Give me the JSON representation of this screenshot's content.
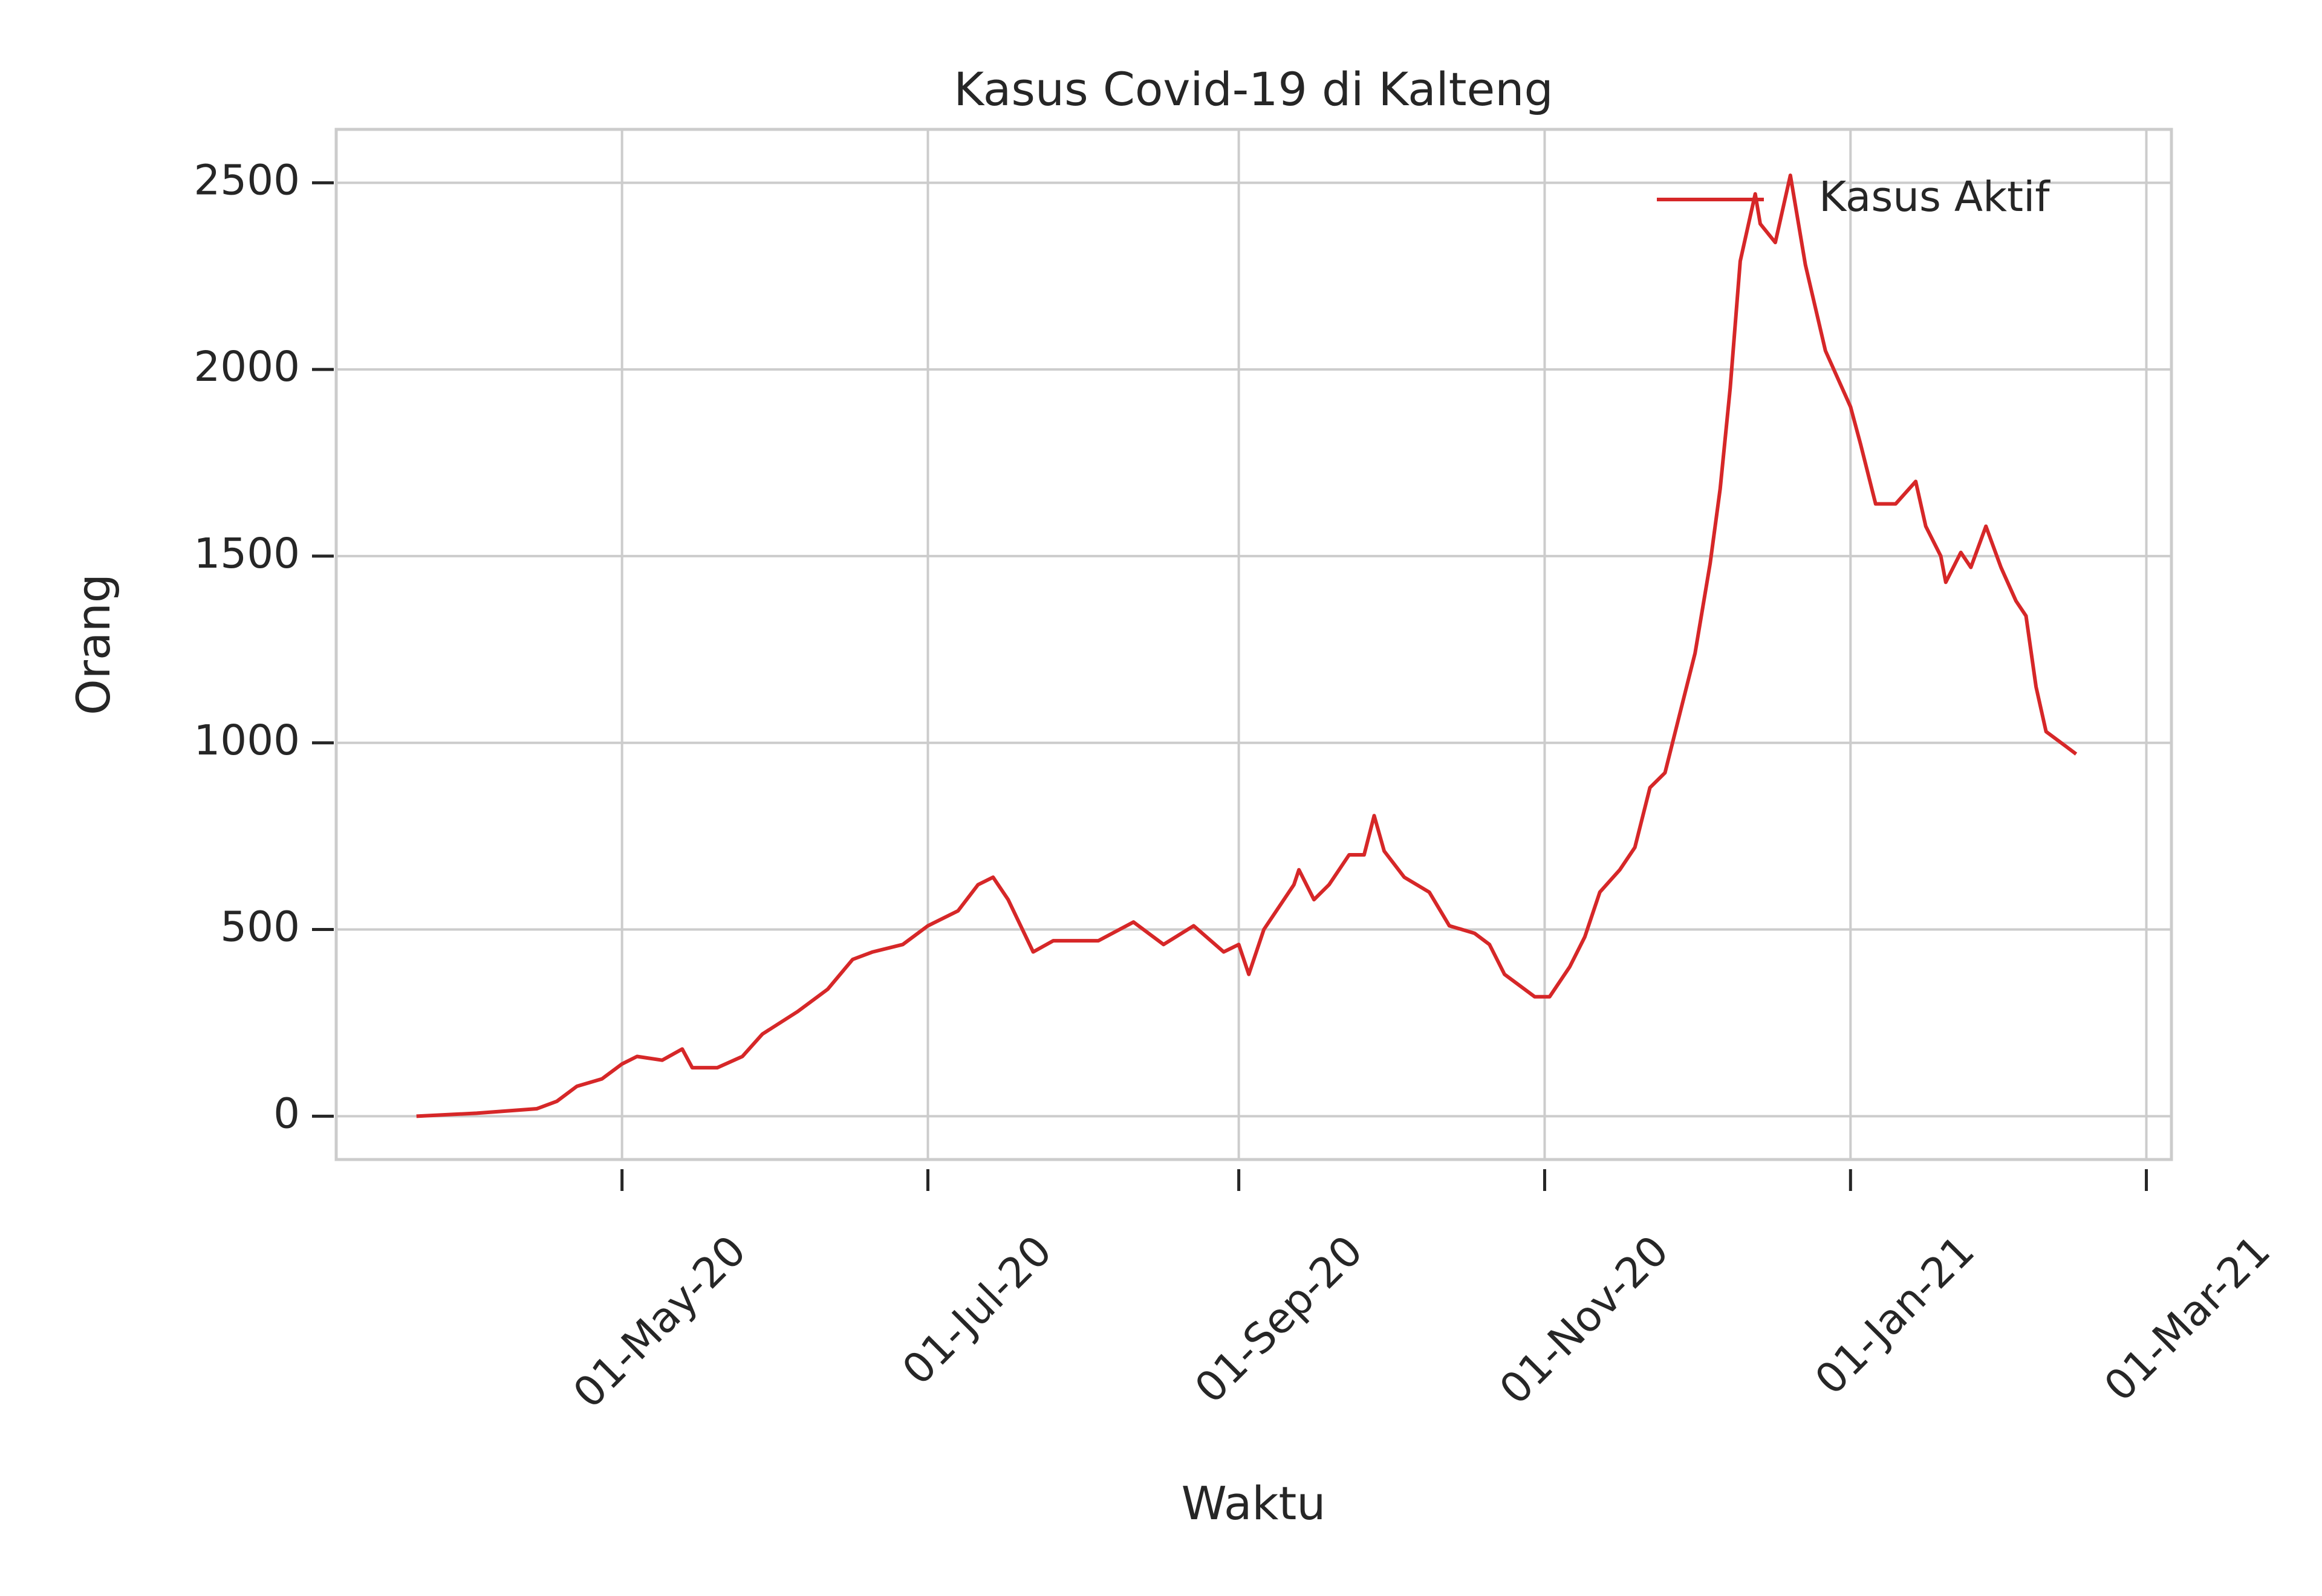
{
  "chart_data": {
    "type": "line",
    "title": "Kasus Covid-19 di Kalteng",
    "x_label": "Waktu",
    "y_label": "Orang",
    "x": [
      "2020-03-21",
      "2020-04-02",
      "2020-04-14",
      "2020-04-18",
      "2020-04-22",
      "2020-04-27",
      "2020-05-01",
      "2020-05-04",
      "2020-05-09",
      "2020-05-13",
      "2020-05-15",
      "2020-05-20",
      "2020-05-25",
      "2020-05-29",
      "2020-06-05",
      "2020-06-11",
      "2020-06-16",
      "2020-06-20",
      "2020-06-26",
      "2020-07-01",
      "2020-07-07",
      "2020-07-11",
      "2020-07-14",
      "2020-07-17",
      "2020-07-22",
      "2020-07-26",
      "2020-08-04",
      "2020-08-11",
      "2020-08-17",
      "2020-08-23",
      "2020-08-29",
      "2020-09-01",
      "2020-09-03",
      "2020-09-06",
      "2020-09-12",
      "2020-09-13",
      "2020-09-16",
      "2020-09-19",
      "2020-09-23",
      "2020-09-26",
      "2020-09-28",
      "2020-09-30",
      "2020-10-04",
      "2020-10-09",
      "2020-10-13",
      "2020-10-18",
      "2020-10-21",
      "2020-10-24",
      "2020-10-30",
      "2020-11-02",
      "2020-11-06",
      "2020-11-09",
      "2020-11-12",
      "2020-11-16",
      "2020-11-19",
      "2020-11-22",
      "2020-11-25",
      "2020-11-28",
      "2020-12-01",
      "2020-12-04",
      "2020-12-06",
      "2020-12-08",
      "2020-12-10",
      "2020-12-13",
      "2020-12-14",
      "2020-12-17",
      "2020-12-20",
      "2020-12-23",
      "2020-12-27",
      "2021-01-01",
      "2021-01-03",
      "2021-01-06",
      "2021-01-10",
      "2021-01-14",
      "2021-01-16",
      "2021-01-19",
      "2021-01-20",
      "2021-01-23",
      "2021-01-25",
      "2021-01-28",
      "2021-01-31",
      "2021-02-03",
      "2021-02-05",
      "2021-02-07",
      "2021-02-09",
      "2021-02-13",
      "2021-02-15"
    ],
    "series": [
      {
        "name": "Kasus Aktif",
        "color": "#d62728",
        "values": [
          0,
          8,
          20,
          40,
          80,
          100,
          140,
          160,
          150,
          180,
          130,
          130,
          160,
          220,
          280,
          340,
          420,
          440,
          460,
          510,
          550,
          620,
          640,
          580,
          440,
          470,
          470,
          520,
          460,
          510,
          440,
          460,
          380,
          500,
          620,
          660,
          580,
          620,
          700,
          700,
          805,
          710,
          640,
          600,
          510,
          490,
          460,
          380,
          320,
          320,
          400,
          480,
          600,
          660,
          720,
          880,
          920,
          1080,
          1240,
          1480,
          1680,
          1950,
          2290,
          2470,
          2390,
          2340,
          2520,
          2280,
          2050,
          1900,
          1800,
          1640,
          1640,
          1700,
          1580,
          1500,
          1430,
          1510,
          1470,
          1580,
          1470,
          1380,
          1340,
          1150,
          1030,
          990,
          970
        ]
      }
    ],
    "xlim": [
      "2020-03-05",
      "2021-03-06"
    ],
    "xticks": [
      {
        "value": "2020-05-01",
        "label": "01-May-20"
      },
      {
        "value": "2020-07-01",
        "label": "01-Jul-20"
      },
      {
        "value": "2020-09-01",
        "label": "01-Sep-20"
      },
      {
        "value": "2020-11-01",
        "label": "01-Nov-20"
      },
      {
        "value": "2021-01-01",
        "label": "01-Jan-21"
      },
      {
        "value": "2021-03-01",
        "label": "01-Mar-21"
      }
    ],
    "ylim": [
      -116,
      2643
    ],
    "yticks": [
      0,
      500,
      1000,
      1500,
      2000,
      2500
    ],
    "grid": true,
    "legend": "upper right"
  }
}
